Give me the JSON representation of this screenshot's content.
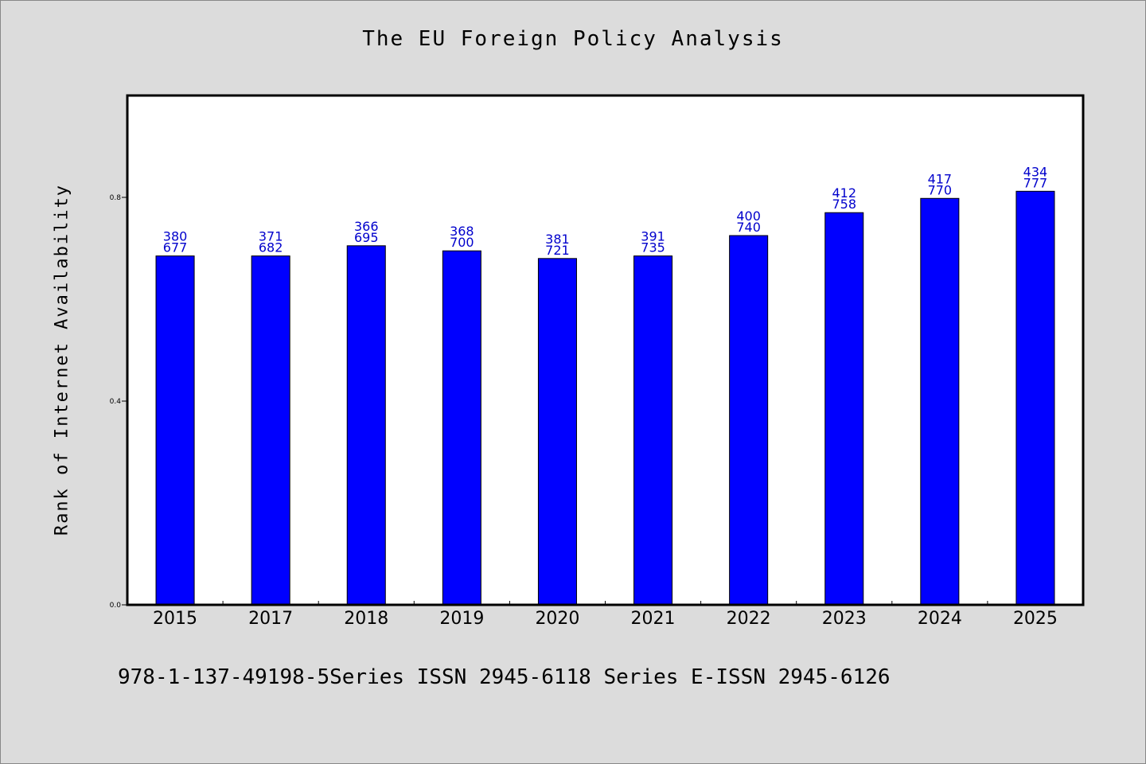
{
  "chart_data": {
    "type": "bar",
    "title": "The EU Foreign Policy Analysis",
    "xlabel": "",
    "ylabel": "Rank of Internet Availability",
    "categories": [
      "2015",
      "2017",
      "2018",
      "2019",
      "2020",
      "2021",
      "2022",
      "2023",
      "2024",
      "2025"
    ],
    "values": [
      0.685,
      0.685,
      0.705,
      0.695,
      0.68,
      0.685,
      0.725,
      0.77,
      0.798,
      0.812
    ],
    "labels_top": [
      "380",
      "371",
      "366",
      "368",
      "381",
      "391",
      "400",
      "412",
      "417",
      "434"
    ],
    "labels_bottom": [
      "677",
      "682",
      "695",
      "700",
      "721",
      "735",
      "740",
      "758",
      "770",
      "777"
    ],
    "ylim": [
      0,
      1.0
    ],
    "yticks": [
      0.0,
      0.4,
      0.8
    ],
    "ytick_labels": [
      "0.0",
      "0.4",
      "0.8"
    ],
    "grid": false,
    "bar_color": "#0000ff",
    "label_color": "#0000cc"
  },
  "footer": "978-1-137-49198-5Series ISSN 2945-6118 Series E-ISSN 2945-6126"
}
